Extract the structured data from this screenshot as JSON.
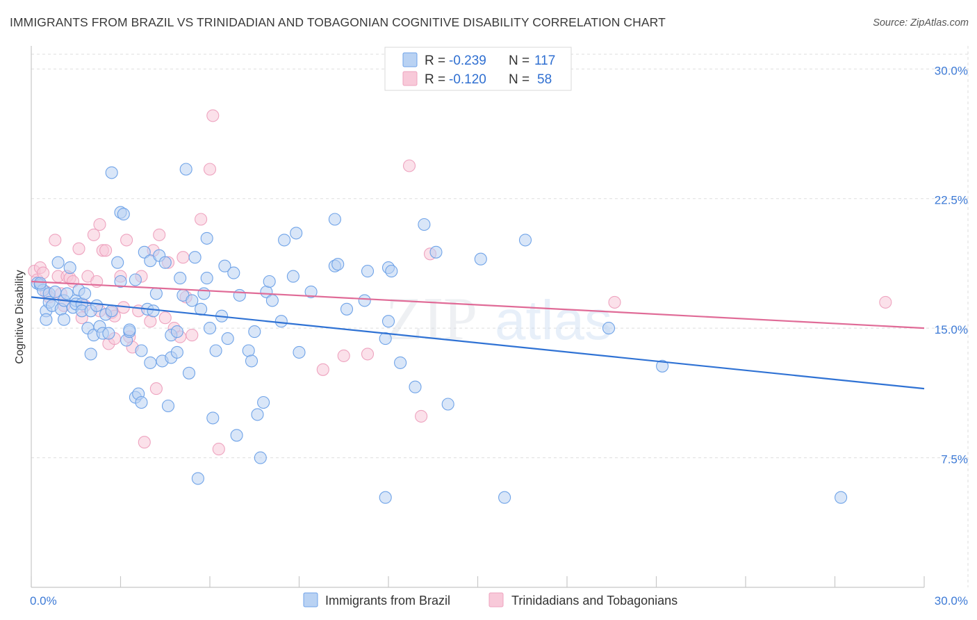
{
  "title": "IMMIGRANTS FROM BRAZIL VS TRINIDADIAN AND TOBAGONIAN COGNITIVE DISABILITY CORRELATION CHART",
  "source": "Source: ZipAtlas.com",
  "watermark": {
    "zip": "ZIP",
    "atlas": "atlas"
  },
  "legend": {
    "rows": [
      {
        "r_label": "R =",
        "r_value": "-0.239",
        "n_label": "N =",
        "n_value": "117"
      },
      {
        "r_label": "R =",
        "r_value": "-0.120",
        "n_label": "N =",
        "n_value": "58"
      }
    ]
  },
  "chart_data": {
    "type": "scatter",
    "title": "IMMIGRANTS FROM BRAZIL VS TRINIDADIAN AND TOBAGONIAN COGNITIVE DISABILITY CORRELATION CHART",
    "xlabel": "",
    "ylabel": "Cognitive Disability",
    "xlim": [
      0,
      30
    ],
    "ylim": [
      0,
      31.5
    ],
    "x_tick_labels": [
      "0.0%",
      "30.0%"
    ],
    "y_ticks": [
      7.5,
      15.0,
      22.5,
      30.0
    ],
    "y_tick_labels": [
      "7.5%",
      "15.0%",
      "22.5%",
      "30.0%"
    ],
    "grid": true,
    "legend_position": "top-center",
    "series": [
      {
        "name": "Immigrants from Brazil",
        "color": "#6fa3e8",
        "fill": "#b9d2f3",
        "line_color": "#2f72d4",
        "trend": [
          [
            0,
            16.8
          ],
          [
            30,
            11.5
          ]
        ],
        "points": [
          [
            0.2,
            17.6
          ],
          [
            0.3,
            17.5
          ],
          [
            0.4,
            17.2
          ],
          [
            0.5,
            16.0
          ],
          [
            0.5,
            15.5
          ],
          [
            0.6,
            17.0
          ],
          [
            0.6,
            16.5
          ],
          [
            0.7,
            16.3
          ],
          [
            0.8,
            17.1
          ],
          [
            0.9,
            18.8
          ],
          [
            1.0,
            16.1
          ],
          [
            1.1,
            15.5
          ],
          [
            1.1,
            16.6
          ],
          [
            1.2,
            17.0
          ],
          [
            1.3,
            18.5
          ],
          [
            1.4,
            16.2
          ],
          [
            1.5,
            16.6
          ],
          [
            1.5,
            16.4
          ],
          [
            1.6,
            17.2
          ],
          [
            1.7,
            16.4
          ],
          [
            1.7,
            16.0
          ],
          [
            1.8,
            17.0
          ],
          [
            1.9,
            15.0
          ],
          [
            2.0,
            16.0
          ],
          [
            2.0,
            13.5
          ],
          [
            2.1,
            14.6
          ],
          [
            2.2,
            16.3
          ],
          [
            2.3,
            15.1
          ],
          [
            2.4,
            14.7
          ],
          [
            2.5,
            15.8
          ],
          [
            2.6,
            14.7
          ],
          [
            2.7,
            16.0
          ],
          [
            2.7,
            24.0
          ],
          [
            2.9,
            18.8
          ],
          [
            3.0,
            17.7
          ],
          [
            3.0,
            21.7
          ],
          [
            3.1,
            21.6
          ],
          [
            3.2,
            14.3
          ],
          [
            3.3,
            14.8
          ],
          [
            3.3,
            14.9
          ],
          [
            3.5,
            17.8
          ],
          [
            3.5,
            11.0
          ],
          [
            3.6,
            11.2
          ],
          [
            3.7,
            13.7
          ],
          [
            3.7,
            10.7
          ],
          [
            3.8,
            19.4
          ],
          [
            3.9,
            16.1
          ],
          [
            4.0,
            13.0
          ],
          [
            4.0,
            18.9
          ],
          [
            4.1,
            16.0
          ],
          [
            4.2,
            17.0
          ],
          [
            4.3,
            19.2
          ],
          [
            4.4,
            13.1
          ],
          [
            4.5,
            18.8
          ],
          [
            4.6,
            10.5
          ],
          [
            4.7,
            14.6
          ],
          [
            4.7,
            13.3
          ],
          [
            4.9,
            13.6
          ],
          [
            4.9,
            14.8
          ],
          [
            5.0,
            17.9
          ],
          [
            5.1,
            16.9
          ],
          [
            5.2,
            24.2
          ],
          [
            5.3,
            12.4
          ],
          [
            5.4,
            16.6
          ],
          [
            5.5,
            19.1
          ],
          [
            5.6,
            6.3
          ],
          [
            5.7,
            16.1
          ],
          [
            5.8,
            17.0
          ],
          [
            5.9,
            17.9
          ],
          [
            5.9,
            20.2
          ],
          [
            6.0,
            15.0
          ],
          [
            6.1,
            9.8
          ],
          [
            6.2,
            13.7
          ],
          [
            6.4,
            15.7
          ],
          [
            6.5,
            18.6
          ],
          [
            6.6,
            14.4
          ],
          [
            6.8,
            18.2
          ],
          [
            6.9,
            8.8
          ],
          [
            7.0,
            16.9
          ],
          [
            7.3,
            13.7
          ],
          [
            7.4,
            13.1
          ],
          [
            7.5,
            14.8
          ],
          [
            7.6,
            10.0
          ],
          [
            7.7,
            7.5
          ],
          [
            7.8,
            10.7
          ],
          [
            7.9,
            17.1
          ],
          [
            8.0,
            17.7
          ],
          [
            8.1,
            16.6
          ],
          [
            8.4,
            15.4
          ],
          [
            8.5,
            20.1
          ],
          [
            8.8,
            18.0
          ],
          [
            8.9,
            20.5
          ],
          [
            9.0,
            13.6
          ],
          [
            9.4,
            17.1
          ],
          [
            10.2,
            21.3
          ],
          [
            10.2,
            18.6
          ],
          [
            10.3,
            18.7
          ],
          [
            10.6,
            16.1
          ],
          [
            11.2,
            16.6
          ],
          [
            11.3,
            18.3
          ],
          [
            11.9,
            5.2
          ],
          [
            11.9,
            14.4
          ],
          [
            12.0,
            15.4
          ],
          [
            12.0,
            18.5
          ],
          [
            12.1,
            18.3
          ],
          [
            12.4,
            13.0
          ],
          [
            12.9,
            11.6
          ],
          [
            13.2,
            21.0
          ],
          [
            13.6,
            19.4
          ],
          [
            14.0,
            10.6
          ],
          [
            15.1,
            19.0
          ],
          [
            15.9,
            5.2
          ],
          [
            16.6,
            20.1
          ],
          [
            19.4,
            15.0
          ],
          [
            21.2,
            12.8
          ],
          [
            27.2,
            5.2
          ],
          [
            0.3,
            17.6
          ]
        ]
      },
      {
        "name": "Trinidadians and Tobagonians",
        "color": "#eea3bf",
        "fill": "#f8c9d9",
        "line_color": "#e06b97",
        "trend": [
          [
            0,
            17.7
          ],
          [
            30,
            15.0
          ]
        ],
        "points": [
          [
            0.1,
            18.3
          ],
          [
            0.2,
            17.8
          ],
          [
            0.3,
            18.5
          ],
          [
            0.4,
            18.2
          ],
          [
            0.5,
            17.1
          ],
          [
            0.6,
            16.8
          ],
          [
            0.8,
            20.1
          ],
          [
            0.9,
            18.0
          ],
          [
            1.0,
            17.0
          ],
          [
            1.1,
            16.3
          ],
          [
            1.2,
            18.0
          ],
          [
            1.3,
            17.9
          ],
          [
            1.4,
            17.7
          ],
          [
            1.6,
            19.6
          ],
          [
            1.7,
            15.6
          ],
          [
            1.8,
            16.3
          ],
          [
            1.9,
            18.0
          ],
          [
            2.1,
            20.4
          ],
          [
            2.2,
            17.7
          ],
          [
            2.3,
            21.0
          ],
          [
            2.3,
            16.0
          ],
          [
            2.4,
            19.5
          ],
          [
            2.5,
            19.5
          ],
          [
            2.6,
            14.1
          ],
          [
            2.7,
            15.9
          ],
          [
            2.8,
            14.4
          ],
          [
            2.8,
            15.7
          ],
          [
            3.0,
            18.0
          ],
          [
            3.1,
            16.2
          ],
          [
            3.2,
            20.1
          ],
          [
            3.3,
            14.5
          ],
          [
            3.4,
            13.9
          ],
          [
            3.6,
            16.0
          ],
          [
            3.7,
            18.0
          ],
          [
            3.8,
            8.4
          ],
          [
            4.0,
            15.4
          ],
          [
            4.1,
            19.5
          ],
          [
            4.2,
            11.5
          ],
          [
            4.3,
            20.4
          ],
          [
            4.5,
            15.6
          ],
          [
            4.6,
            18.8
          ],
          [
            4.8,
            15.0
          ],
          [
            5.0,
            14.5
          ],
          [
            5.1,
            19.1
          ],
          [
            5.2,
            16.8
          ],
          [
            5.4,
            14.6
          ],
          [
            5.7,
            21.3
          ],
          [
            6.0,
            24.2
          ],
          [
            6.1,
            27.3
          ],
          [
            6.3,
            8.0
          ],
          [
            9.8,
            12.6
          ],
          [
            10.5,
            13.4
          ],
          [
            11.3,
            13.5
          ],
          [
            12.7,
            24.4
          ],
          [
            13.1,
            9.9
          ],
          [
            13.4,
            19.3
          ],
          [
            19.6,
            16.5
          ],
          [
            28.7,
            16.5
          ]
        ]
      }
    ]
  }
}
